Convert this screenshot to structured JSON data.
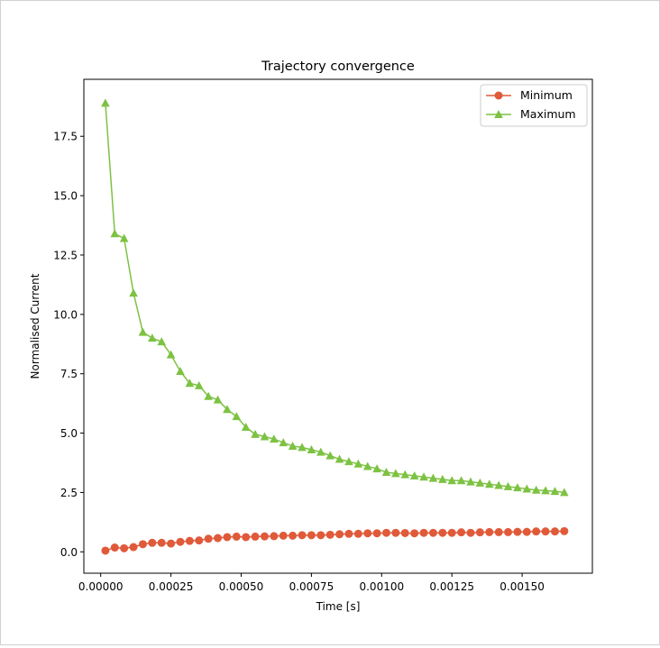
{
  "chart_data": {
    "type": "line",
    "title": "Trajectory convergence",
    "xlabel": "Time [s]",
    "ylabel": "Normalised Current",
    "xlim": [
      -6e-05,
      0.00175
    ],
    "ylim": [
      -0.9,
      19.9
    ],
    "xticks": [
      0.0,
      0.00025,
      0.0005,
      0.00075,
      0.001,
      0.00125,
      0.0015
    ],
    "xtick_labels": [
      "0.00000",
      "0.00025",
      "0.00050",
      "0.00075",
      "0.00100",
      "0.00125",
      "0.00150"
    ],
    "yticks": [
      0.0,
      2.5,
      5.0,
      7.5,
      10.0,
      12.5,
      15.0,
      17.5
    ],
    "ytick_labels": [
      "0.0",
      "2.5",
      "5.0",
      "7.5",
      "10.0",
      "12.5",
      "15.0",
      "17.5"
    ],
    "grid": false,
    "legend_position": "top-right",
    "x": [
      1.67e-05,
      5e-05,
      8.33e-05,
      0.0001167,
      0.00015,
      0.0001833,
      0.0002167,
      0.00025,
      0.0002833,
      0.0003167,
      0.00035,
      0.0003833,
      0.0004167,
      0.00045,
      0.0004833,
      0.0005167,
      0.00055,
      0.0005833,
      0.0006167,
      0.00065,
      0.0006833,
      0.0007167,
      0.00075,
      0.0007833,
      0.0008167,
      0.00085,
      0.0008833,
      0.0009167,
      0.00095,
      0.0009833,
      0.0010167,
      0.00105,
      0.0010833,
      0.0011167,
      0.00115,
      0.0011833,
      0.0012167,
      0.00125,
      0.0012833,
      0.0013167,
      0.00135,
      0.0013833,
      0.0014167,
      0.00145,
      0.0014833,
      0.0015167,
      0.00155,
      0.0015833,
      0.0016167,
      0.00165
    ],
    "series": [
      {
        "name": "Minimum",
        "color": "#e05a3a",
        "marker": "circle",
        "values": [
          0.05,
          0.18,
          0.15,
          0.2,
          0.32,
          0.38,
          0.38,
          0.35,
          0.42,
          0.46,
          0.48,
          0.55,
          0.58,
          0.62,
          0.64,
          0.62,
          0.64,
          0.65,
          0.66,
          0.68,
          0.68,
          0.7,
          0.7,
          0.7,
          0.72,
          0.74,
          0.76,
          0.76,
          0.78,
          0.78,
          0.8,
          0.8,
          0.79,
          0.78,
          0.8,
          0.8,
          0.8,
          0.8,
          0.82,
          0.8,
          0.82,
          0.83,
          0.83,
          0.83,
          0.84,
          0.84,
          0.86,
          0.86,
          0.86,
          0.87
        ]
      },
      {
        "name": "Maximum",
        "color": "#7dc242",
        "marker": "triangle",
        "values": [
          18.9,
          13.4,
          13.2,
          10.9,
          9.25,
          9.0,
          8.85,
          8.3,
          7.6,
          7.1,
          7.0,
          6.55,
          6.4,
          6.0,
          5.7,
          5.25,
          4.95,
          4.85,
          4.75,
          4.6,
          4.45,
          4.4,
          4.3,
          4.2,
          4.05,
          3.9,
          3.8,
          3.7,
          3.6,
          3.5,
          3.35,
          3.3,
          3.25,
          3.2,
          3.15,
          3.1,
          3.05,
          3.0,
          3.0,
          2.95,
          2.9,
          2.85,
          2.8,
          2.75,
          2.7,
          2.65,
          2.6,
          2.58,
          2.55,
          2.5
        ]
      }
    ]
  }
}
